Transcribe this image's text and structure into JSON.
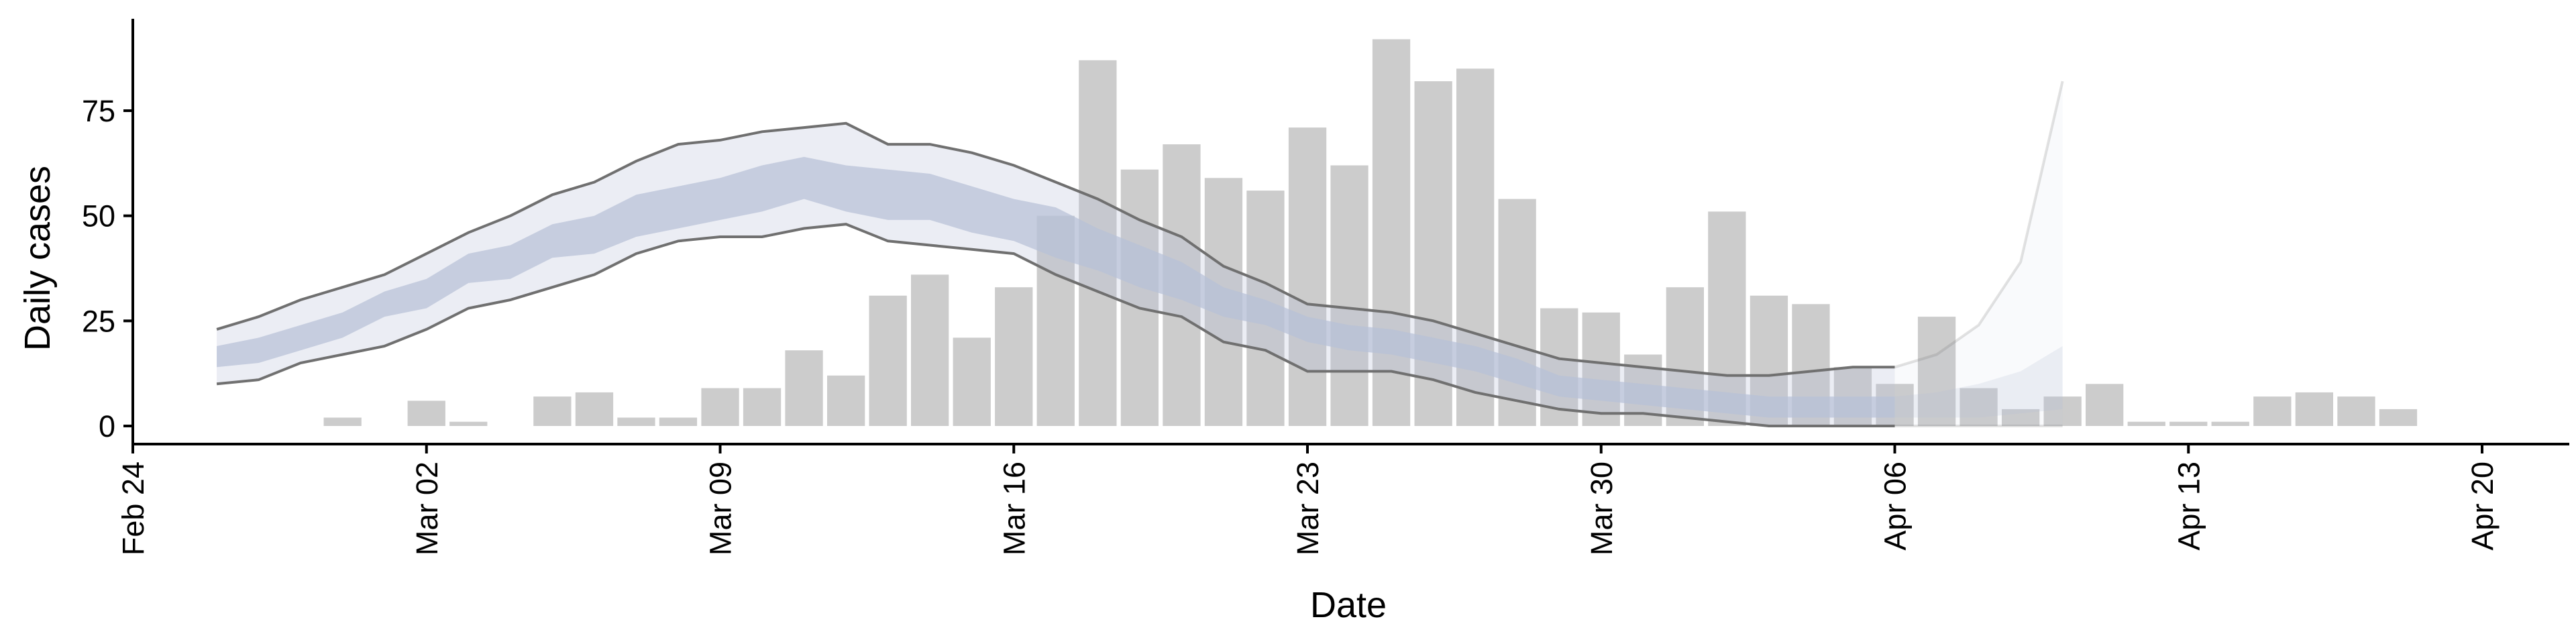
{
  "chart_data": {
    "type": "bar",
    "title": "",
    "xlabel": "Date",
    "ylabel": "Daily cases",
    "x_ticks": [
      "Feb 24",
      "Mar 02",
      "Mar 09",
      "Mar 16",
      "Mar 23",
      "Mar 30",
      "Apr 06",
      "Apr 13",
      "Apr 20"
    ],
    "y_ticks": [
      0,
      25,
      50,
      75
    ],
    "ylim": [
      -4,
      96
    ],
    "xlim": [
      "2020-02-24",
      "2020-04-20"
    ],
    "grid": false,
    "bar_color": "#cccccc",
    "band_color": "#b7c0d7",
    "line_color": "#707070",
    "bars": {
      "dates": [
        "2020-02-29",
        "2020-03-01",
        "2020-03-02",
        "2020-03-03",
        "2020-03-04",
        "2020-03-05",
        "2020-03-06",
        "2020-03-07",
        "2020-03-08",
        "2020-03-09",
        "2020-03-10",
        "2020-03-11",
        "2020-03-12",
        "2020-03-13",
        "2020-03-14",
        "2020-03-15",
        "2020-03-16",
        "2020-03-17",
        "2020-03-18",
        "2020-03-19",
        "2020-03-20",
        "2020-03-21",
        "2020-03-22",
        "2020-03-23",
        "2020-03-24",
        "2020-03-25",
        "2020-03-26",
        "2020-03-27",
        "2020-03-28",
        "2020-03-29",
        "2020-03-30",
        "2020-03-31",
        "2020-04-01",
        "2020-04-02",
        "2020-04-03",
        "2020-04-04",
        "2020-04-05",
        "2020-04-06",
        "2020-04-07",
        "2020-04-08",
        "2020-04-09",
        "2020-04-10",
        "2020-04-11",
        "2020-04-12",
        "2020-04-13",
        "2020-04-14",
        "2020-04-15",
        "2020-04-16",
        "2020-04-17",
        "2020-04-18",
        "2020-04-19"
      ],
      "values": [
        2,
        0,
        6,
        1,
        0,
        7,
        8,
        2,
        2,
        9,
        9,
        18,
        12,
        31,
        36,
        21,
        33,
        50,
        87,
        61,
        67,
        59,
        56,
        71,
        62,
        92,
        82,
        85,
        54,
        28,
        27,
        17,
        33,
        51,
        31,
        29,
        14,
        10,
        26,
        9,
        4,
        7,
        10,
        1,
        1,
        1,
        7,
        8,
        7,
        4,
        0
      ]
    },
    "estimate": {
      "dates": [
        "2020-02-26",
        "2020-02-27",
        "2020-02-28",
        "2020-02-29",
        "2020-03-01",
        "2020-03-02",
        "2020-03-03",
        "2020-03-04",
        "2020-03-05",
        "2020-03-06",
        "2020-03-07",
        "2020-03-08",
        "2020-03-09",
        "2020-03-10",
        "2020-03-11",
        "2020-03-12",
        "2020-03-13",
        "2020-03-14",
        "2020-03-15",
        "2020-03-16",
        "2020-03-17",
        "2020-03-18",
        "2020-03-19",
        "2020-03-20",
        "2020-03-21",
        "2020-03-22",
        "2020-03-23",
        "2020-03-24",
        "2020-03-25",
        "2020-03-26",
        "2020-03-27",
        "2020-03-28",
        "2020-03-29",
        "2020-03-30",
        "2020-03-31",
        "2020-04-01",
        "2020-04-02",
        "2020-04-03",
        "2020-04-04",
        "2020-04-05",
        "2020-04-06"
      ],
      "outer_upper": [
        23,
        26,
        30,
        33,
        36,
        41,
        46,
        50,
        55,
        58,
        63,
        67,
        68,
        70,
        71,
        72,
        67,
        67,
        65,
        62,
        58,
        54,
        49,
        45,
        38,
        34,
        29,
        28,
        27,
        25,
        22,
        19,
        16,
        15,
        14,
        13,
        12,
        12,
        13,
        14,
        14
      ],
      "outer_lower": [
        10,
        11,
        15,
        17,
        19,
        23,
        28,
        30,
        33,
        36,
        41,
        44,
        45,
        45,
        47,
        48,
        44,
        43,
        42,
        41,
        36,
        32,
        28,
        26,
        20,
        18,
        13,
        13,
        13,
        11,
        8,
        6,
        4,
        3,
        3,
        2,
        1,
        0,
        0,
        0,
        0
      ],
      "inner_upper": [
        19,
        21,
        24,
        27,
        32,
        35,
        41,
        43,
        48,
        50,
        55,
        57,
        59,
        62,
        64,
        62,
        61,
        60,
        57,
        54,
        52,
        47,
        43,
        39,
        33,
        30,
        26,
        24,
        23,
        21,
        19,
        16,
        12,
        11,
        10,
        9,
        8,
        7,
        7,
        7,
        7
      ],
      "inner_lower": [
        14,
        15,
        18,
        21,
        26,
        28,
        34,
        35,
        40,
        41,
        45,
        47,
        49,
        51,
        54,
        51,
        49,
        49,
        46,
        44,
        40,
        37,
        33,
        30,
        26,
        24,
        20,
        18,
        17,
        15,
        13,
        10,
        7,
        6,
        5,
        4,
        3,
        2,
        2,
        2,
        2
      ]
    },
    "projection": {
      "dates": [
        "2020-04-06",
        "2020-04-07",
        "2020-04-08",
        "2020-04-09",
        "2020-04-10"
      ],
      "outer_upper": [
        14,
        17,
        24,
        39,
        82
      ],
      "outer_lower": [
        0,
        0,
        0,
        0,
        0
      ],
      "inner_upper": [
        7,
        8,
        10,
        13,
        19
      ],
      "inner_lower": [
        2,
        2,
        2,
        3,
        4
      ]
    }
  }
}
